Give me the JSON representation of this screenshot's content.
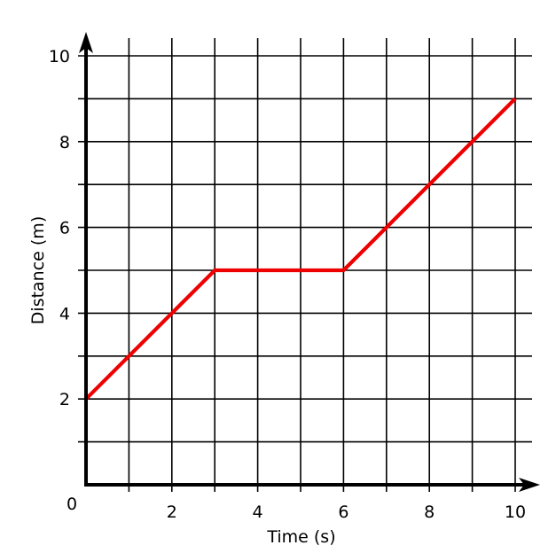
{
  "chart_data": {
    "type": "line",
    "title": "",
    "xlabel": "Time (s)",
    "ylabel": "Distance (m)",
    "xlim": [
      0,
      10
    ],
    "ylim": [
      0,
      10
    ],
    "grid": true,
    "x_grid_step": 1,
    "y_grid_step": 1,
    "x_ticks": [
      2,
      4,
      6,
      8,
      10
    ],
    "y_ticks": [
      2,
      4,
      6,
      8,
      10
    ],
    "x_tick_labels": [
      "2",
      "4",
      "6",
      "8",
      "10"
    ],
    "y_tick_labels": [
      "2",
      "4",
      "6",
      "8",
      "10"
    ],
    "origin_label": "0",
    "series": [
      {
        "color": "#ee0000",
        "points": [
          [
            0,
            2
          ],
          [
            3,
            5
          ],
          [
            6,
            5
          ],
          [
            10,
            9
          ]
        ]
      }
    ]
  }
}
